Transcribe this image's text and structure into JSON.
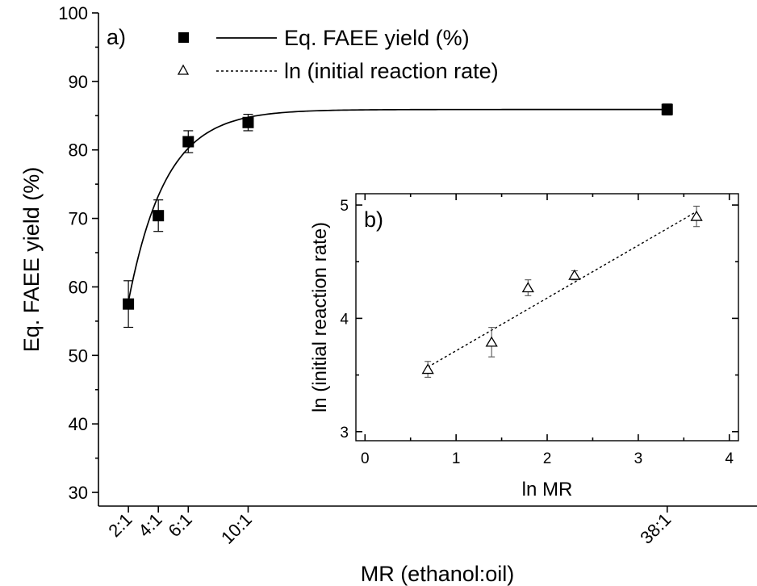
{
  "chart_data": [
    {
      "panel": "a)",
      "type": "scatter",
      "xlabel": "MR (ethanol:oil)",
      "ylabel": "Eq. FAEE yield (%)",
      "ylim": [
        28,
        100
      ],
      "yticks": [
        30,
        40,
        50,
        60,
        70,
        80,
        90,
        100
      ],
      "x_categories": [
        "2:1",
        "4:1",
        "6:1",
        "10:1",
        "38:1"
      ],
      "x_values": [
        2,
        4,
        6,
        10,
        38
      ],
      "xlim": [
        0,
        44
      ],
      "series": [
        {
          "name": "Eq. FAEE yield (%)",
          "marker": "filled-square",
          "x": [
            2,
            4,
            6,
            10,
            38
          ],
          "y": [
            57.5,
            70.4,
            81.2,
            84.0,
            85.9
          ],
          "error": [
            3.4,
            2.3,
            1.6,
            1.2,
            0.8
          ]
        }
      ],
      "fit": {
        "name": "Eq. FAEE yield (%)",
        "style": "solid",
        "model": "y = A - B*exp(-k*x)",
        "A": 85.9,
        "B": 62.4,
        "k": 0.4,
        "x_range": [
          2,
          38
        ]
      },
      "legend_position": "top-left",
      "legend": [
        {
          "marker": "filled-square",
          "line": "solid",
          "label": "Eq. FAEE yield (%)"
        },
        {
          "marker": "open-triangle",
          "line": "dashed",
          "label": "ln (initial reaction rate)"
        }
      ]
    },
    {
      "panel": "b)",
      "type": "scatter",
      "xlabel": "ln MR",
      "ylabel": "ln (initial reaction rate)",
      "xlim": [
        -0.1,
        4.1
      ],
      "ylim": [
        2.92,
        5.1
      ],
      "xticks": [
        0,
        1,
        2,
        3,
        4
      ],
      "yticks": [
        3,
        4,
        5
      ],
      "series": [
        {
          "name": "ln (initial reaction rate)",
          "marker": "open-triangle",
          "x": [
            0.69,
            1.39,
            1.79,
            2.3,
            3.64
          ],
          "y": [
            3.55,
            3.79,
            4.27,
            4.38,
            4.9
          ],
          "error": [
            0.07,
            0.13,
            0.07,
            0.04,
            0.09
          ]
        }
      ],
      "fit": {
        "name": "ln (initial reaction rate)",
        "style": "dashed",
        "model": "linear",
        "slope": 0.465,
        "intercept": 3.249,
        "x_range": [
          0.69,
          3.64
        ]
      }
    }
  ]
}
